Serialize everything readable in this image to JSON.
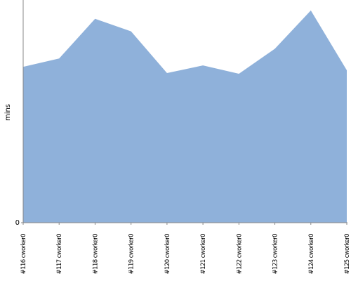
{
  "chart_data": {
    "type": "area",
    "y_label": "mins",
    "categories": [
      "#116 cworker0",
      "#117 cworker0",
      "#118 cworker0",
      "#119 cworker0",
      "#120 cworker0",
      "#121 cworker0",
      "#122 cworker0",
      "#123 cworker0",
      "#124 cworker0",
      "#125 cworker0"
    ],
    "values": [
      22.4,
      23.6,
      29.3,
      27.5,
      21.5,
      22.6,
      21.4,
      25.0,
      30.5,
      21.9
    ],
    "color": "#8fb1da",
    "ylim": [
      0,
      32
    ],
    "yticks": [
      0
    ]
  }
}
